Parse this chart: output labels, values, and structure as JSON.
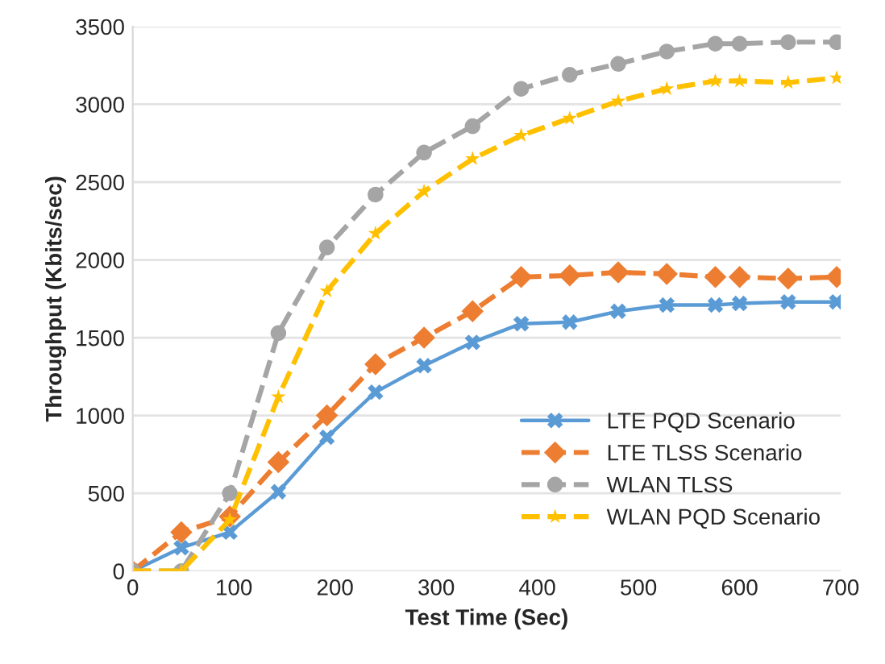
{
  "chart_data": {
    "type": "line",
    "xlabel": "Test Time (Sec)",
    "ylabel": "Throughput (Kbits/sec)",
    "x": [
      0,
      48,
      96,
      144,
      192,
      240,
      288,
      336,
      384,
      432,
      480,
      528,
      576,
      600,
      648,
      696
    ],
    "xlim": [
      0,
      700
    ],
    "xticks": [
      0,
      100,
      200,
      300,
      400,
      500,
      600,
      700
    ],
    "ylim": [
      0,
      3500
    ],
    "yticks": [
      0,
      500,
      1000,
      1500,
      2000,
      2500,
      3000,
      3500
    ],
    "grid": "y",
    "legend": "lower right",
    "series": [
      {
        "name": "LTE PQD Scenario",
        "color": "#5b9bd5",
        "marker": "cross",
        "line_style": "solid",
        "values": [
          0,
          150,
          250,
          510,
          860,
          1150,
          1320,
          1470,
          1590,
          1600,
          1670,
          1710,
          1710,
          1720,
          1730,
          1730
        ]
      },
      {
        "name": "LTE TLSS Scenario",
        "color": "#ed7d31",
        "marker": "diamond",
        "line_style": "dashed",
        "values": [
          0,
          250,
          350,
          700,
          1000,
          1330,
          1500,
          1670,
          1890,
          1900,
          1920,
          1910,
          1890,
          1890,
          1880,
          1890
        ]
      },
      {
        "name": "WLAN TLSS",
        "color": "#a5a5a5",
        "marker": "circle",
        "line_style": "dashed",
        "values": [
          0,
          0,
          500,
          1530,
          2080,
          2420,
          2690,
          2860,
          3100,
          3190,
          3260,
          3340,
          3390,
          3390,
          3400,
          3400
        ]
      },
      {
        "name": "WLAN PQD Scenario",
        "color": "#ffc000",
        "marker": "star",
        "line_style": "dashed",
        "values": [
          0,
          0,
          330,
          1120,
          1800,
          2170,
          2440,
          2650,
          2800,
          2910,
          3020,
          3100,
          3150,
          3150,
          3140,
          3170
        ]
      }
    ]
  }
}
